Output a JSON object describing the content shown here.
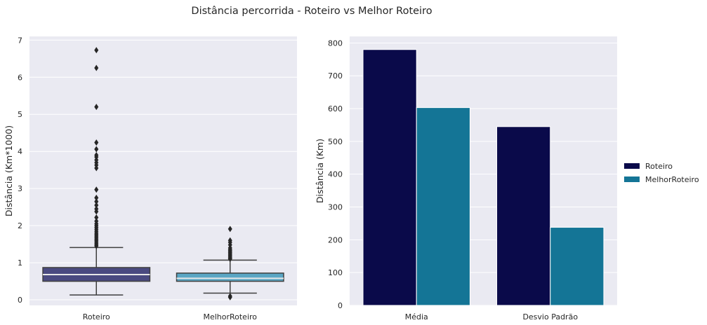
{
  "title": "Distância percorrida - Roteiro vs Melhor Roteiro",
  "chart_data": [
    {
      "type": "box",
      "xlabel": "",
      "ylabel": "Distância (Km*1000)",
      "ylim": [
        -0.15,
        7.1
      ],
      "yticks": [
        0,
        1,
        2,
        3,
        4,
        5,
        6,
        7
      ],
      "grid": true,
      "categories": [
        "Roteiro",
        "MelhorRoteiro"
      ],
      "colors": [
        "#4a4a80",
        "#5aa6c4"
      ],
      "boxes": [
        {
          "name": "Roteiro",
          "whisker_low": 0.13,
          "q1": 0.5,
          "median": 0.68,
          "q3": 0.87,
          "whisker_high": 1.41,
          "outliers": [
            6.73,
            6.25,
            5.2,
            4.24,
            4.06,
            3.9,
            3.85,
            3.77,
            3.7,
            3.63,
            3.55,
            2.97,
            2.75,
            2.65,
            2.55,
            2.45,
            2.38,
            2.22,
            2.12,
            2.05,
            2.0,
            1.95,
            1.9,
            1.85,
            1.8,
            1.76,
            1.72,
            1.68,
            1.64,
            1.6,
            1.56,
            1.52,
            1.48,
            1.45
          ]
        },
        {
          "name": "MelhorRoteiro",
          "whisker_low": 0.18,
          "q1": 0.5,
          "median": 0.58,
          "q3": 0.72,
          "whisker_high": 1.07,
          "outliers": [
            1.91,
            1.6,
            1.55,
            1.48,
            1.4,
            1.36,
            1.33,
            1.3,
            1.27,
            1.24,
            1.21,
            1.18,
            1.15,
            1.12,
            1.1,
            0.1,
            0.07
          ]
        }
      ]
    },
    {
      "type": "bar",
      "xlabel": "",
      "ylabel": "Distância (Km)",
      "ylim": [
        0,
        820
      ],
      "yticks": [
        0,
        100,
        200,
        300,
        400,
        500,
        600,
        700,
        800
      ],
      "grid": true,
      "categories": [
        "Média",
        "Desvio Padrão"
      ],
      "series": [
        {
          "name": "Roteiro",
          "color": "#0a0a4a",
          "values": [
            780,
            545
          ]
        },
        {
          "name": "MelhorRoteiro",
          "color": "#147596",
          "values": [
            603,
            238
          ]
        }
      ],
      "legend": "right"
    }
  ]
}
